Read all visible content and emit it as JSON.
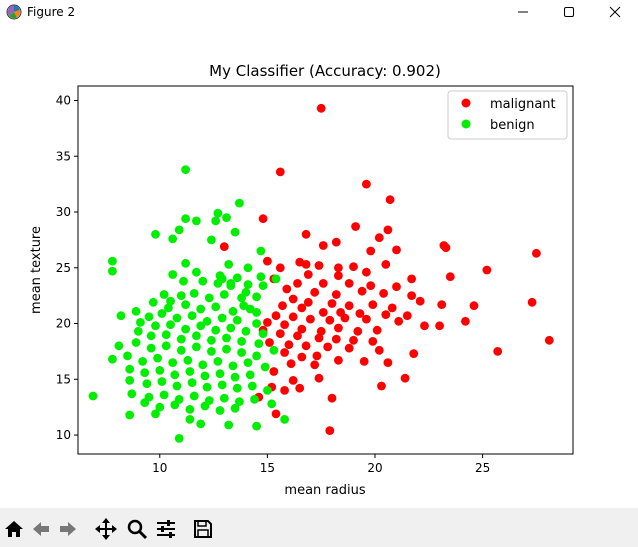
{
  "window": {
    "title": "Figure 2",
    "controls": [
      "minimize",
      "maximize",
      "close"
    ]
  },
  "toolbar": {
    "buttons": [
      {
        "name": "home",
        "icon": "home-icon"
      },
      {
        "name": "back",
        "icon": "back-arrow-icon"
      },
      {
        "name": "forward",
        "icon": "forward-arrow-icon"
      },
      {
        "name": "pan",
        "icon": "move-icon"
      },
      {
        "name": "zoom",
        "icon": "zoom-icon"
      },
      {
        "name": "subplots",
        "icon": "sliders-icon"
      },
      {
        "name": "save",
        "icon": "save-icon"
      }
    ]
  },
  "chart_data": {
    "type": "scatter",
    "title": "My Classifier (Accuracy: 0.902)",
    "xlabel": "mean radius",
    "ylabel": "mean texture",
    "xlim": [
      6.2,
      29.2
    ],
    "ylim": [
      8.3,
      41.3
    ],
    "xticks": [
      10,
      15,
      20,
      25
    ],
    "yticks": [
      10,
      15,
      20,
      25,
      30,
      35,
      40
    ],
    "grid": false,
    "legend_position": "top-right",
    "series": [
      {
        "name": "malignant",
        "color": "#ff0000",
        "points": [
          [
            17.5,
            39.3
          ],
          [
            15.6,
            33.6
          ],
          [
            19.6,
            32.5
          ],
          [
            20.7,
            31.1
          ],
          [
            14.8,
            29.4
          ],
          [
            19.1,
            28.7
          ],
          [
            20.6,
            28.4
          ],
          [
            16.8,
            28.0
          ],
          [
            20.2,
            27.7
          ],
          [
            18.2,
            27.3
          ],
          [
            17.6,
            27.0
          ],
          [
            21.0,
            26.6
          ],
          [
            23.2,
            27.0
          ],
          [
            23.3,
            26.8
          ],
          [
            27.5,
            26.3
          ],
          [
            19.8,
            26.5
          ],
          [
            16.5,
            25.5
          ],
          [
            15.0,
            25.6
          ],
          [
            15.6,
            25.0
          ],
          [
            16.8,
            25.3
          ],
          [
            17.4,
            25.2
          ],
          [
            18.3,
            25.0
          ],
          [
            19.0,
            25.1
          ],
          [
            20.5,
            25.3
          ],
          [
            23.5,
            24.2
          ],
          [
            25.2,
            24.8
          ],
          [
            21.7,
            24.0
          ],
          [
            16.9,
            24.4
          ],
          [
            18.3,
            24.3
          ],
          [
            19.6,
            24.6
          ],
          [
            15.3,
            24.0
          ],
          [
            16.4,
            23.6
          ],
          [
            17.6,
            23.6
          ],
          [
            18.8,
            23.6
          ],
          [
            19.8,
            23.4
          ],
          [
            21.0,
            23.3
          ],
          [
            15.9,
            23.1
          ],
          [
            17.2,
            22.8
          ],
          [
            18.2,
            22.6
          ],
          [
            19.4,
            22.9
          ],
          [
            20.4,
            22.7
          ],
          [
            21.7,
            22.5
          ],
          [
            22.1,
            22.0
          ],
          [
            16.2,
            22.2
          ],
          [
            16.9,
            21.9
          ],
          [
            18.0,
            21.8
          ],
          [
            18.8,
            21.6
          ],
          [
            19.9,
            21.7
          ],
          [
            20.8,
            21.4
          ],
          [
            15.7,
            21.6
          ],
          [
            16.6,
            21.4
          ],
          [
            17.6,
            21.0
          ],
          [
            18.4,
            21.0
          ],
          [
            19.3,
            20.9
          ],
          [
            20.5,
            20.8
          ],
          [
            21.5,
            20.7
          ],
          [
            23.1,
            21.7
          ],
          [
            24.6,
            21.6
          ],
          [
            27.3,
            21.9
          ],
          [
            15.4,
            20.7
          ],
          [
            16.2,
            20.6
          ],
          [
            17.0,
            20.4
          ],
          [
            17.9,
            20.3
          ],
          [
            18.6,
            20.5
          ],
          [
            19.6,
            20.4
          ],
          [
            21.1,
            20.2
          ],
          [
            22.3,
            19.8
          ],
          [
            24.2,
            20.2
          ],
          [
            15.0,
            20.1
          ],
          [
            15.8,
            19.9
          ],
          [
            16.6,
            19.5
          ],
          [
            17.5,
            19.3
          ],
          [
            18.3,
            19.6
          ],
          [
            19.2,
            19.3
          ],
          [
            20.1,
            19.4
          ],
          [
            23.0,
            19.8
          ],
          [
            14.8,
            19.4
          ],
          [
            15.6,
            19.1
          ],
          [
            16.4,
            18.9
          ],
          [
            17.4,
            18.7
          ],
          [
            18.2,
            18.6
          ],
          [
            19.0,
            18.5
          ],
          [
            19.9,
            18.4
          ],
          [
            15.1,
            18.3
          ],
          [
            16.0,
            18.1
          ],
          [
            16.8,
            18.0
          ],
          [
            17.8,
            17.9
          ],
          [
            18.8,
            17.8
          ],
          [
            20.2,
            17.6
          ],
          [
            21.8,
            17.3
          ],
          [
            28.1,
            18.5
          ],
          [
            15.8,
            17.4
          ],
          [
            16.6,
            17.0
          ],
          [
            17.3,
            17.1
          ],
          [
            19.5,
            16.6
          ],
          [
            20.6,
            16.5
          ],
          [
            25.7,
            17.5
          ],
          [
            16.1,
            16.4
          ],
          [
            17.2,
            16.3
          ],
          [
            18.3,
            16.7
          ],
          [
            15.3,
            15.7
          ],
          [
            17.4,
            15.1
          ],
          [
            21.4,
            15.1
          ],
          [
            15.2,
            14.3
          ],
          [
            16.5,
            14.2
          ],
          [
            20.3,
            14.4
          ],
          [
            15.4,
            11.9
          ],
          [
            17.9,
            10.4
          ],
          [
            13.0,
            26.9
          ],
          [
            15.8,
            14.0
          ],
          [
            16.2,
            14.9
          ],
          [
            14.6,
            13.4
          ],
          [
            18.0,
            13.3
          ]
        ]
      },
      {
        "name": "benign",
        "color": "#00ee00",
        "points": [
          [
            11.2,
            33.8
          ],
          [
            12.7,
            29.9
          ],
          [
            13.7,
            30.8
          ],
          [
            11.2,
            29.4
          ],
          [
            12.6,
            29.2
          ],
          [
            13.1,
            29.5
          ],
          [
            11.7,
            29.2
          ],
          [
            10.9,
            28.4
          ],
          [
            13.5,
            28.2
          ],
          [
            9.8,
            28.0
          ],
          [
            12.4,
            27.5
          ],
          [
            10.6,
            27.6
          ],
          [
            14.7,
            26.5
          ],
          [
            7.8,
            25.6
          ],
          [
            11.2,
            25.4
          ],
          [
            13.2,
            25.3
          ],
          [
            14.1,
            25.0
          ],
          [
            7.8,
            24.7
          ],
          [
            10.6,
            24.4
          ],
          [
            11.7,
            24.6
          ],
          [
            12.8,
            24.3
          ],
          [
            13.6,
            24.1
          ],
          [
            14.7,
            24.2
          ],
          [
            15.4,
            24.0
          ],
          [
            11.1,
            23.8
          ],
          [
            12.0,
            23.8
          ],
          [
            12.7,
            23.6
          ],
          [
            13.3,
            23.6
          ],
          [
            14.1,
            23.5
          ],
          [
            14.8,
            23.4
          ],
          [
            10.2,
            22.6
          ],
          [
            11.0,
            22.5
          ],
          [
            11.6,
            22.7
          ],
          [
            12.3,
            22.3
          ],
          [
            13.0,
            22.6
          ],
          [
            13.8,
            22.3
          ],
          [
            14.5,
            22.4
          ],
          [
            9.7,
            21.9
          ],
          [
            10.4,
            21.4
          ],
          [
            11.2,
            21.7
          ],
          [
            11.9,
            21.3
          ],
          [
            12.6,
            21.5
          ],
          [
            13.4,
            21.1
          ],
          [
            14.2,
            21.3
          ],
          [
            8.9,
            21.1
          ],
          [
            9.5,
            20.6
          ],
          [
            10.1,
            20.9
          ],
          [
            10.8,
            20.5
          ],
          [
            11.5,
            20.7
          ],
          [
            12.2,
            20.2
          ],
          [
            12.9,
            20.5
          ],
          [
            13.6,
            20.3
          ],
          [
            14.5,
            20.0
          ],
          [
            8.2,
            20.7
          ],
          [
            9.1,
            20.1
          ],
          [
            9.8,
            19.8
          ],
          [
            10.5,
            19.9
          ],
          [
            11.2,
            19.5
          ],
          [
            11.9,
            19.8
          ],
          [
            12.6,
            19.4
          ],
          [
            13.3,
            19.6
          ],
          [
            14.0,
            19.3
          ],
          [
            14.8,
            19.1
          ],
          [
            9.0,
            19.3
          ],
          [
            9.6,
            18.9
          ],
          [
            10.3,
            19.0
          ],
          [
            11.0,
            18.6
          ],
          [
            11.7,
            18.9
          ],
          [
            12.4,
            18.5
          ],
          [
            13.1,
            18.7
          ],
          [
            13.8,
            18.4
          ],
          [
            14.6,
            18.2
          ],
          [
            8.1,
            18.0
          ],
          [
            8.9,
            18.3
          ],
          [
            9.6,
            17.8
          ],
          [
            10.3,
            18.0
          ],
          [
            11.0,
            17.6
          ],
          [
            11.7,
            17.9
          ],
          [
            12.4,
            17.5
          ],
          [
            13.1,
            17.7
          ],
          [
            13.8,
            17.4
          ],
          [
            14.5,
            17.1
          ],
          [
            15.3,
            17.6
          ],
          [
            7.8,
            16.8
          ],
          [
            8.5,
            17.1
          ],
          [
            9.2,
            16.6
          ],
          [
            9.9,
            16.9
          ],
          [
            10.6,
            16.5
          ],
          [
            11.3,
            16.7
          ],
          [
            12.0,
            16.3
          ],
          [
            12.7,
            16.6
          ],
          [
            13.4,
            16.2
          ],
          [
            14.1,
            16.5
          ],
          [
            14.9,
            16.1
          ],
          [
            8.6,
            15.9
          ],
          [
            9.3,
            15.6
          ],
          [
            10.0,
            15.8
          ],
          [
            10.7,
            15.4
          ],
          [
            11.4,
            15.7
          ],
          [
            12.1,
            15.3
          ],
          [
            12.8,
            15.5
          ],
          [
            13.5,
            15.2
          ],
          [
            14.2,
            15.4
          ],
          [
            8.6,
            14.9
          ],
          [
            9.4,
            14.6
          ],
          [
            10.1,
            14.8
          ],
          [
            10.8,
            14.4
          ],
          [
            11.5,
            14.7
          ],
          [
            12.2,
            14.3
          ],
          [
            12.9,
            14.5
          ],
          [
            13.6,
            14.2
          ],
          [
            14.3,
            14.4
          ],
          [
            15.0,
            14.0
          ],
          [
            8.7,
            13.7
          ],
          [
            9.5,
            13.4
          ],
          [
            10.2,
            13.6
          ],
          [
            10.9,
            13.2
          ],
          [
            11.6,
            13.5
          ],
          [
            12.3,
            13.1
          ],
          [
            13.0,
            13.3
          ],
          [
            13.7,
            13.0
          ],
          [
            14.4,
            13.2
          ],
          [
            6.9,
            13.5
          ],
          [
            9.3,
            12.9
          ],
          [
            10.0,
            12.5
          ],
          [
            10.7,
            12.7
          ],
          [
            11.4,
            12.3
          ],
          [
            12.1,
            12.6
          ],
          [
            12.8,
            12.2
          ],
          [
            13.5,
            12.4
          ],
          [
            15.2,
            12.8
          ],
          [
            8.6,
            11.8
          ],
          [
            9.8,
            11.9
          ],
          [
            11.4,
            11.4
          ],
          [
            11.9,
            11.0
          ],
          [
            13.2,
            10.9
          ],
          [
            14.5,
            10.8
          ],
          [
            15.8,
            11.4
          ],
          [
            10.9,
            9.7
          ],
          [
            10.5,
            22.0
          ],
          [
            12.9,
            24.0
          ],
          [
            13.3,
            23.4
          ],
          [
            14.0,
            22.8
          ],
          [
            14.5,
            21.0
          ],
          [
            13.9,
            21.6
          ]
        ]
      }
    ]
  }
}
